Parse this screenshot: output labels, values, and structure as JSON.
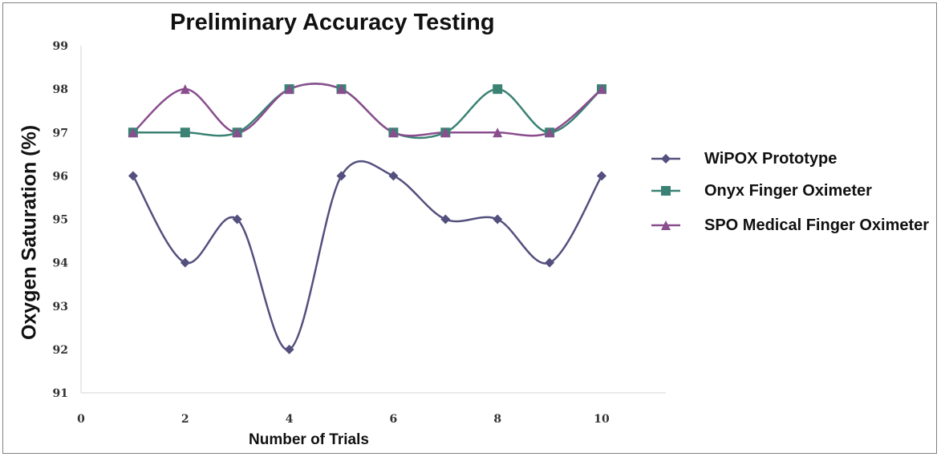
{
  "chart_data": {
    "type": "line",
    "title": "Preliminary Accuracy Testing",
    "xlabel": "Number of Trials",
    "ylabel": "Oxygen Saturation (%)",
    "xlim": [
      0,
      10
    ],
    "ylim": [
      91,
      99
    ],
    "x_ticks": [
      "0",
      "2",
      "4",
      "6",
      "8",
      "10"
    ],
    "y_ticks": [
      "91",
      "92",
      "93",
      "94",
      "95",
      "96",
      "97",
      "98",
      "99"
    ],
    "grid": false,
    "legend_position": "right",
    "x": [
      1,
      2,
      3,
      4,
      5,
      6,
      7,
      8,
      9,
      10
    ],
    "series": [
      {
        "name": "WiPOX Prototype",
        "values": [
          96,
          94,
          95,
          92,
          96,
          96,
          95,
          95,
          94,
          96
        ],
        "color": "#54507e",
        "marker": "diamond"
      },
      {
        "name": "Onyx Finger Oximeter",
        "values": [
          97,
          97,
          97,
          98,
          98,
          97,
          97,
          98,
          97,
          98
        ],
        "color": "#3b8274",
        "marker": "square"
      },
      {
        "name": "SPO Medical Finger Oximeter",
        "values": [
          97,
          98,
          97,
          98,
          98,
          97,
          97,
          97,
          97,
          98
        ],
        "color": "#8a4d8e",
        "marker": "triangle"
      }
    ]
  }
}
